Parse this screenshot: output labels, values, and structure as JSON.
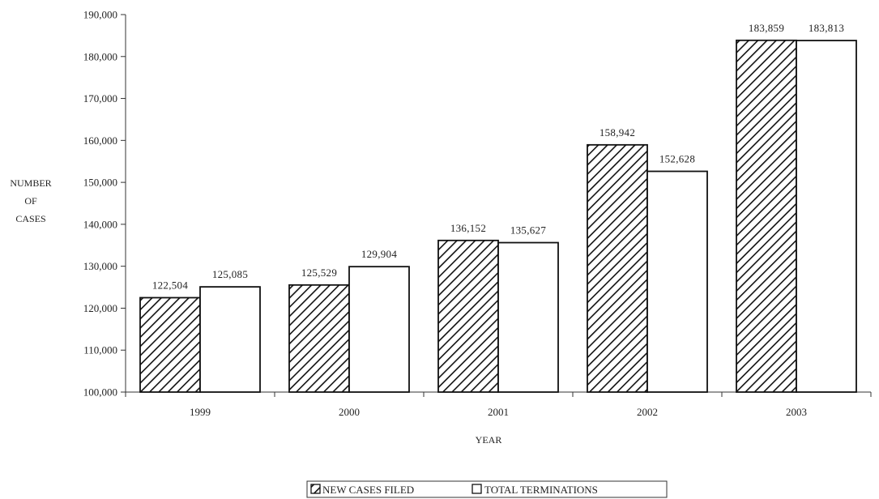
{
  "chart_data": {
    "type": "bar",
    "categories": [
      "1999",
      "2000",
      "2001",
      "2002",
      "2003"
    ],
    "series": [
      {
        "name": "NEW CASES FILED",
        "values": [
          122504,
          125529,
          136152,
          158942,
          183859
        ],
        "pattern": "hatched"
      },
      {
        "name": "TOTAL TERMINATIONS",
        "values": [
          125085,
          129904,
          135627,
          152628,
          183813
        ],
        "pattern": "solid"
      }
    ],
    "data_labels": [
      [
        "122,504",
        "125,529",
        "136,152",
        "158,942",
        "183,859"
      ],
      [
        "125,085",
        "129,904",
        "135,627",
        "152,628",
        "183,813"
      ]
    ],
    "ylim": [
      100000,
      190000
    ],
    "yticks": [
      100000,
      110000,
      120000,
      130000,
      140000,
      150000,
      160000,
      170000,
      180000,
      190000
    ],
    "ytick_labels": [
      "100,000",
      "110,000",
      "120,000",
      "130,000",
      "140,000",
      "150,000",
      "160,000",
      "170,000",
      "180,000",
      "190,000"
    ],
    "ylabel_lines": [
      "NUMBER",
      "OF",
      "CASES"
    ],
    "xlabel": "YEAR",
    "title": "",
    "grid": false,
    "legend_position": "bottom-center"
  },
  "colors": {
    "bar_outline": "#111111",
    "hatch": "#111111",
    "fill_solid": "#ffffff",
    "axis": "#333333",
    "text": "#222222"
  }
}
